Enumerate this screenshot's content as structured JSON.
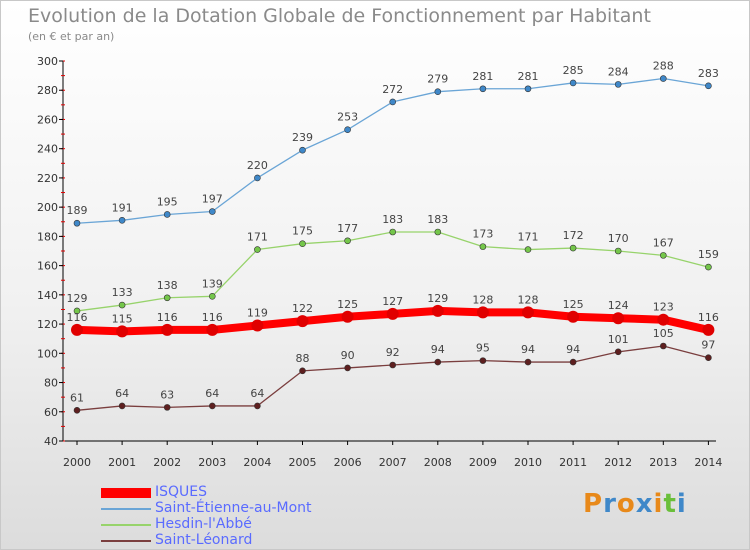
{
  "header": {
    "title": "Evolution de la Dotation Globale de Fonctionnement par Habitant",
    "subtitle": "(en € et par an)"
  },
  "logo": {
    "text": "Proxiti",
    "colors": [
      "#e8891a",
      "#3f88c9",
      "#e8891a",
      "#3f88c9",
      "#e8891a",
      "#6abf3a",
      "#3f88c9"
    ]
  },
  "chart_data": {
    "type": "line",
    "x": [
      "2000",
      "2001",
      "2002",
      "2003",
      "2004",
      "2005",
      "2006",
      "2007",
      "2008",
      "2009",
      "2010",
      "2011",
      "2012",
      "2013",
      "2014"
    ],
    "ylim": [
      40,
      300
    ],
    "yticks": [
      40,
      60,
      80,
      100,
      120,
      140,
      160,
      180,
      200,
      220,
      240,
      260,
      280,
      300
    ],
    "grid": false,
    "legend_position": "bottom-left",
    "series": [
      {
        "name": "Saint-Étienne-au-Mont",
        "color": "#6aa5d6",
        "marker": "#3f88c9",
        "values": [
          189,
          191,
          195,
          197,
          220,
          239,
          253,
          272,
          279,
          281,
          281,
          285,
          284,
          288,
          283
        ]
      },
      {
        "name": "Hesdin-l'Abbé",
        "color": "#97d36b",
        "marker": "#74c64a",
        "values": [
          129,
          133,
          138,
          139,
          171,
          175,
          177,
          183,
          183,
          173,
          171,
          172,
          170,
          167,
          159
        ]
      },
      {
        "name": "Saint-Léonard",
        "color": "#7a3e3e",
        "marker": "#5e1f1f",
        "values": [
          61,
          64,
          63,
          64,
          64,
          88,
          90,
          92,
          94,
          95,
          94,
          94,
          101,
          105,
          97
        ]
      },
      {
        "name": "ISQUES",
        "color": "#ff0000",
        "marker": "#e00000",
        "highlight": true,
        "values": [
          116,
          115,
          116,
          116,
          119,
          122,
          125,
          127,
          129,
          128,
          128,
          125,
          124,
          123,
          116
        ]
      }
    ]
  }
}
